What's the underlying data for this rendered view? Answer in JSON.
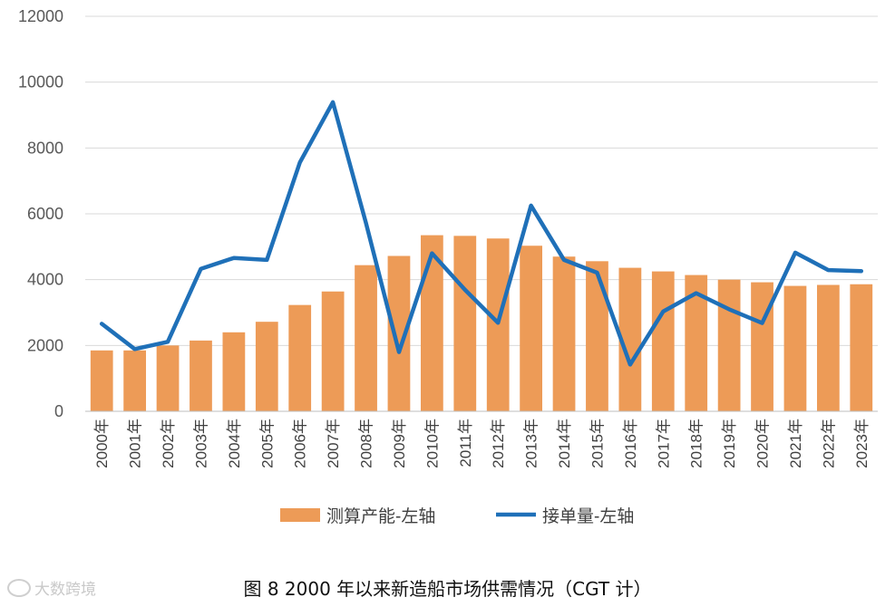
{
  "chart_data": {
    "type": "bar+line",
    "title": "",
    "caption": "图  8 2000 年以来新造船市场供需情况（CGT 计）",
    "categories": [
      "2000年",
      "2001年",
      "2002年",
      "2003年",
      "2004年",
      "2005年",
      "2006年",
      "2007年",
      "2008年",
      "2009年",
      "2010年",
      "2011年",
      "2012年",
      "2013年",
      "2014年",
      "2015年",
      "2016年",
      "2017年",
      "2018年",
      "2019年",
      "2020年",
      "2021年",
      "2022年",
      "2023年"
    ],
    "series": [
      {
        "name": "测算产能-左轴",
        "type": "bar",
        "color": "#ED9B57",
        "values": [
          1850,
          1850,
          2000,
          2150,
          2400,
          2720,
          3230,
          3640,
          4440,
          4720,
          5350,
          5330,
          5250,
          5030,
          4700,
          4560,
          4360,
          4250,
          4140,
          4000,
          3920,
          3810,
          3840,
          3860
        ]
      },
      {
        "name": "接单量-左轴",
        "type": "line",
        "color": "#1F70B8",
        "values": [
          2660,
          1890,
          2110,
          4330,
          4660,
          4600,
          7560,
          9390,
          5730,
          1800,
          4800,
          3690,
          2690,
          6250,
          4600,
          4210,
          1420,
          3030,
          3590,
          3100,
          2680,
          4820,
          4290,
          4260
        ]
      }
    ],
    "ylim": [
      0,
      12000
    ],
    "yticks": [
      "0",
      "2000",
      "4000",
      "6000",
      "8000",
      "10000",
      "12000"
    ],
    "grid": true,
    "legend": "bottom",
    "xlabel": "",
    "ylabel": ""
  },
  "watermark": "大数跨境"
}
